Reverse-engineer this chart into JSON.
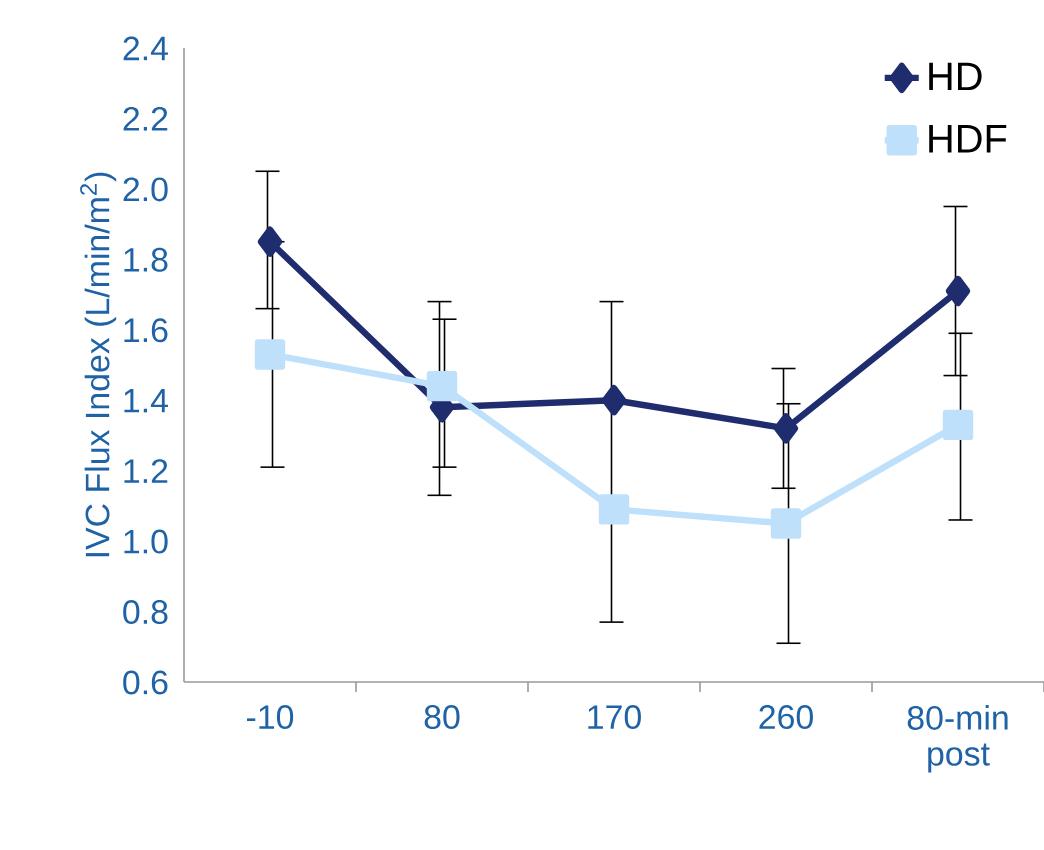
{
  "chart_data": {
    "type": "line",
    "ylabel": "IVC Flux Index (L/min/m$^{2}$)",
    "categories": [
      "-10",
      "80",
      "170",
      "260",
      "80-min post"
    ],
    "series": [
      {
        "name": "HD",
        "color": "#1f2d6e",
        "marker": "diamond",
        "values": [
          1.85,
          1.38,
          1.4,
          1.32,
          1.71
        ],
        "errors": [
          [
            1.66,
            2.05
          ],
          [
            1.13,
            1.68
          ],
          [
            0.77,
            1.68
          ],
          [
            1.15,
            1.49
          ],
          [
            1.47,
            1.95
          ]
        ]
      },
      {
        "name": "HDF",
        "color": "#bfe0fb",
        "marker": "square",
        "values": [
          1.53,
          1.44,
          1.09,
          1.05,
          1.33
        ],
        "errors": [
          [
            1.21,
            1.85
          ],
          [
            1.21,
            1.63
          ],
          null,
          [
            0.71,
            1.39
          ],
          [
            1.06,
            1.59
          ]
        ]
      }
    ],
    "ylim": [
      0.6,
      2.4
    ],
    "yticks": [
      {
        "value": 0.6,
        "label": "0.6"
      },
      {
        "value": 0.8,
        "label": "0.8"
      },
      {
        "value": 1.0,
        "label": "1.0"
      },
      {
        "value": 1.2,
        "label": "1.2"
      },
      {
        "value": 1.4,
        "label": "1.4"
      },
      {
        "value": 1.6,
        "label": "1.6"
      },
      {
        "value": 1.8,
        "label": "1.8"
      },
      {
        "value": 2.0,
        "label": "2.0"
      },
      {
        "value": 2.2,
        "label": "2.2"
      },
      {
        "value": 2.4,
        "label": "2.4"
      }
    ],
    "legend": "top right",
    "grid": false
  }
}
